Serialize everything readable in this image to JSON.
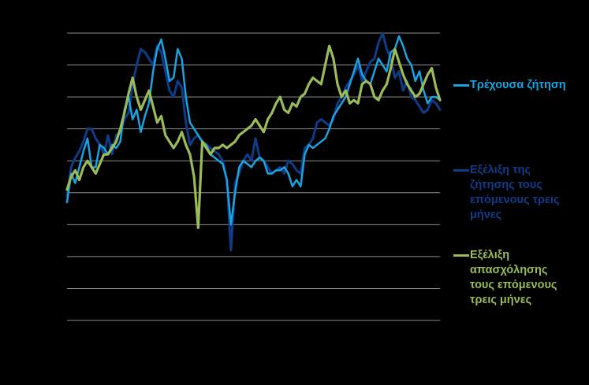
{
  "chart_data": {
    "type": "line",
    "title": "",
    "xlabel": "",
    "ylabel": "",
    "ylim": [
      -60,
      30
    ],
    "yticks": [
      -60,
      -50,
      -40,
      -30,
      -20,
      -10,
      0,
      10,
      20,
      30
    ],
    "grid": true,
    "legend_position": "right",
    "n_points": 120,
    "series": [
      {
        "name": "Τρέχουσα ζήτηση",
        "color": "#1BA3E0",
        "values": [
          -23,
          -14,
          -17,
          -12,
          -7,
          -3,
          -12,
          -12,
          -5,
          -6,
          -8,
          -5,
          -6,
          -4,
          6,
          10,
          3,
          6,
          -1,
          4,
          8,
          18,
          25,
          28,
          22,
          15,
          16,
          25,
          22,
          10,
          2,
          0,
          -2,
          -4,
          -5,
          -8,
          -9,
          -10,
          -11,
          -16,
          -30,
          -20,
          -12,
          -10,
          -11,
          -12,
          -10,
          -9,
          -10,
          -14,
          -14,
          -13,
          -13,
          -12,
          -14,
          -18,
          -16,
          -18,
          -8,
          -5,
          -6,
          -5,
          -4,
          -3,
          0,
          4,
          6,
          8,
          10,
          14,
          18,
          22,
          17,
          15,
          14,
          18,
          22,
          20,
          18,
          24,
          25,
          29,
          26,
          22,
          20,
          15,
          18,
          12,
          8,
          10,
          10,
          9
        ]
      },
      {
        "name": "Εξέλιξη της ζήτησης τους επόμενους τρεις μήνες",
        "color": "#0F3C88",
        "values": [
          -21,
          -12,
          -9,
          -7,
          -4,
          0,
          0,
          -3,
          -5,
          -8,
          -2,
          -8,
          -2,
          -1,
          3,
          5,
          14,
          20,
          25,
          24,
          22,
          20,
          26,
          24,
          18,
          12,
          10,
          15,
          13,
          2,
          -5,
          -3,
          -2,
          -4,
          -5,
          -6,
          -7,
          -8,
          -10,
          -16,
          -38,
          -17,
          -14,
          -10,
          -8,
          -10,
          -3,
          -9,
          -10,
          -12,
          -14,
          -13,
          -12,
          -14,
          -10,
          -11,
          -13,
          -14,
          -6,
          -5,
          -3,
          2,
          3,
          2,
          1,
          3,
          8,
          10,
          13,
          15,
          17,
          20,
          15,
          18,
          21,
          22,
          27,
          30,
          25,
          22,
          16,
          18,
          12,
          15,
          10,
          9,
          7,
          5,
          6,
          9,
          8,
          6
        ]
      },
      {
        "name": "Εξέλιξη απασχόλησης τους επόμενους τρεις μήνες",
        "color": "#9BBB59",
        "values": [
          -19,
          -15,
          -13,
          -16,
          -12,
          -10,
          -12,
          -14,
          -11,
          -8,
          -8,
          -6,
          -4,
          0,
          5,
          11,
          16,
          10,
          6,
          9,
          12,
          7,
          2,
          4,
          -2,
          -4,
          -6,
          -4,
          -1,
          -5,
          -8,
          -15,
          -31,
          -4,
          -6,
          -8,
          -6,
          -6,
          -5,
          -6,
          -5,
          -4,
          -2,
          -1,
          0,
          1,
          3,
          1,
          -1,
          3,
          5,
          8,
          10,
          6,
          5,
          8,
          7,
          10,
          11,
          14,
          16,
          15,
          14,
          20,
          26,
          22,
          14,
          10,
          12,
          8,
          9,
          8,
          14,
          15,
          14,
          10,
          9,
          12,
          14,
          19,
          25,
          21,
          17,
          14,
          12,
          10,
          11,
          14,
          17,
          19,
          13,
          9
        ]
      }
    ]
  }
}
